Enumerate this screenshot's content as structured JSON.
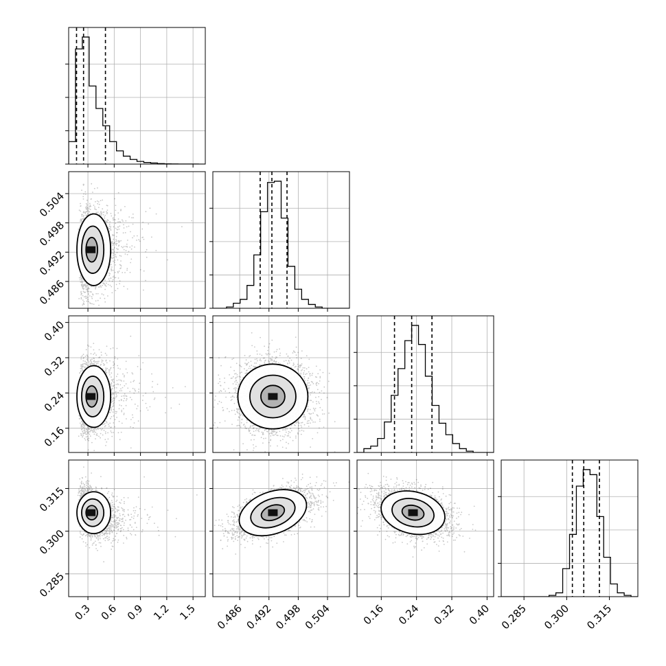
{
  "chart_data": {
    "type": "corner",
    "n_params": 4,
    "panel_ranges": [
      [
        0.08,
        1.64
      ],
      [
        0.4805,
        0.5085
      ],
      [
        0.105,
        0.415
      ],
      [
        0.277,
        0.325
      ]
    ],
    "ticks": [
      [
        0.3,
        0.6,
        0.9,
        1.2,
        1.5
      ],
      [
        0.486,
        0.492,
        0.498,
        0.504
      ],
      [
        0.16,
        0.24,
        0.32,
        0.4
      ],
      [
        0.285,
        0.3,
        0.315
      ]
    ],
    "tick_labels": [
      [
        "0.3",
        "0.6",
        "0.9",
        "1.2",
        "1.5"
      ],
      [
        "0.486",
        "0.492",
        "0.498",
        "0.504"
      ],
      [
        "0.16",
        "0.24",
        "0.32",
        "0.40"
      ],
      [
        "0.285",
        "0.300",
        "0.315"
      ]
    ],
    "histograms": [
      {
        "bin_edges": [
          0.08,
          0.158,
          0.236,
          0.314,
          0.392,
          0.47,
          0.548,
          0.626,
          0.704,
          0.782,
          0.86,
          0.938,
          1.016,
          1.094,
          1.172,
          1.25,
          1.328,
          1.406,
          1.484,
          1.562,
          1.64
        ],
        "counts": [
          0.17,
          0.87,
          0.96,
          0.59,
          0.42,
          0.29,
          0.17,
          0.1,
          0.06,
          0.035,
          0.02,
          0.012,
          0.008,
          0.004,
          0.002,
          0.001,
          0.0005,
          0.0003,
          0.0002,
          0.0001
        ],
        "quantiles": [
          0.17,
          0.25,
          0.5
        ]
      },
      {
        "bin_edges": [
          0.4805,
          0.4819,
          0.4833,
          0.4847,
          0.4861,
          0.4875,
          0.4889,
          0.4903,
          0.4917,
          0.4931,
          0.4945,
          0.4959,
          0.4973,
          0.4987,
          0.5001,
          0.5015,
          0.5029,
          0.5043,
          0.5057,
          0.5071,
          0.5085
        ],
        "counts": [
          0,
          0,
          0.01,
          0.04,
          0.07,
          0.18,
          0.42,
          0.76,
          0.99,
          1.0,
          0.71,
          0.33,
          0.15,
          0.07,
          0.03,
          0.01,
          0,
          0,
          0,
          0
        ],
        "quantiles": [
          0.4902,
          0.4926,
          0.4957
        ]
      },
      {
        "bin_edges": [
          0.105,
          0.1205,
          0.136,
          0.1515,
          0.167,
          0.1825,
          0.198,
          0.2135,
          0.229,
          0.2445,
          0.26,
          0.2755,
          0.291,
          0.3065,
          0.322,
          0.3375,
          0.353,
          0.3685,
          0.384,
          0.3995,
          0.415
        ],
        "counts": [
          0,
          0.03,
          0.05,
          0.11,
          0.24,
          0.45,
          0.66,
          0.88,
          1.0,
          0.85,
          0.6,
          0.37,
          0.23,
          0.14,
          0.07,
          0.03,
          0.01,
          0,
          0,
          0
        ],
        "quantiles": [
          0.19,
          0.229,
          0.275
        ]
      },
      {
        "bin_edges": [
          0.277,
          0.2794,
          0.2818,
          0.2842,
          0.2866,
          0.289,
          0.2914,
          0.2938,
          0.2962,
          0.2986,
          0.301,
          0.3034,
          0.3058,
          0.3082,
          0.3106,
          0.313,
          0.3154,
          0.3178,
          0.3202,
          0.3226,
          0.325
        ],
        "counts": [
          0,
          0,
          0,
          0,
          0,
          0,
          0,
          0.01,
          0.03,
          0.22,
          0.49,
          0.87,
          1.0,
          0.96,
          0.63,
          0.31,
          0.1,
          0.03,
          0.01,
          0
        ],
        "quantiles": [
          0.302,
          0.306,
          0.3115
        ]
      }
    ],
    "joint": [
      {
        "x": 0,
        "y": 1,
        "mean": [
          0.3,
          0.4925
        ],
        "sd": [
          0.16,
          0.0042
        ],
        "rho": 0.1
      },
      {
        "x": 0,
        "y": 2,
        "mean": [
          0.3,
          0.232
        ],
        "sd": [
          0.16,
          0.04
        ],
        "rho": 0.08
      },
      {
        "x": 1,
        "y": 2,
        "mean": [
          0.4928,
          0.232
        ],
        "sd": [
          0.0041,
          0.042
        ],
        "rho": 0.0
      },
      {
        "x": 0,
        "y": 3,
        "mean": [
          0.3,
          0.3065
        ],
        "sd": [
          0.16,
          0.0042
        ],
        "rho": -0.3
      },
      {
        "x": 1,
        "y": 3,
        "mean": [
          0.4928,
          0.3065
        ],
        "sd": [
          0.0041,
          0.0042
        ],
        "rho": 0.55
      },
      {
        "x": 2,
        "y": 3,
        "mean": [
          0.232,
          0.3065
        ],
        "sd": [
          0.042,
          0.0042
        ],
        "rho": -0.35
      }
    ],
    "contour_levels_sigma": [
      0.6,
      1.15,
      1.75
    ],
    "grid": true,
    "title": "",
    "xlabel": "",
    "ylabel": ""
  }
}
